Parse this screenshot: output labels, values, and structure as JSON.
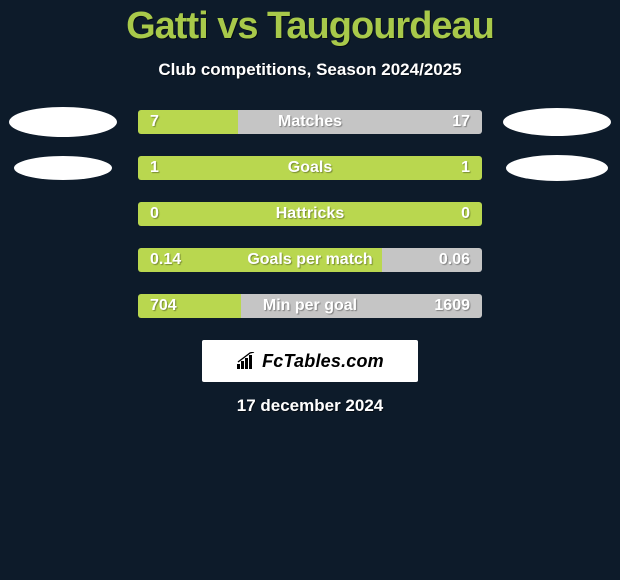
{
  "background_color": "#0d1b2a",
  "header": {
    "title": "Gatti vs Taugourdeau",
    "subtitle": "Club competitions, Season 2024/2025",
    "title_color": "#a8c94a",
    "subtitle_color": "#ffffff",
    "title_fontsize": 38,
    "subtitle_fontsize": 17
  },
  "bar_colors": {
    "left_fill": "#b9d74f",
    "right_fill": "#c5c5c5",
    "neutral_fill": "#b9d74f"
  },
  "rows": [
    {
      "label": "Matches",
      "left_value": "7",
      "right_value": "17",
      "left_pct": 29,
      "left_color": "#b9d74f",
      "right_color": "#c5c5c5",
      "show_left_badge": true,
      "show_right_badge": true,
      "left_badge_w": 108,
      "left_badge_h": 30,
      "right_badge_w": 108,
      "right_badge_h": 28
    },
    {
      "label": "Goals",
      "left_value": "1",
      "right_value": "1",
      "left_pct": 50,
      "left_color": "#b9d74f",
      "right_color": "#b9d74f",
      "show_left_badge": true,
      "show_right_badge": true,
      "left_badge_w": 98,
      "left_badge_h": 24,
      "right_badge_w": 102,
      "right_badge_h": 26
    },
    {
      "label": "Hattricks",
      "left_value": "0",
      "right_value": "0",
      "left_pct": 50,
      "left_color": "#b9d74f",
      "right_color": "#b9d74f",
      "show_left_badge": false,
      "show_right_badge": false
    },
    {
      "label": "Goals per match",
      "left_value": "0.14",
      "right_value": "0.06",
      "left_pct": 71,
      "left_color": "#b9d74f",
      "right_color": "#c5c5c5",
      "show_left_badge": false,
      "show_right_badge": false
    },
    {
      "label": "Min per goal",
      "left_value": "704",
      "right_value": "1609",
      "left_pct": 30,
      "left_color": "#b9d74f",
      "right_color": "#c5c5c5",
      "show_left_badge": false,
      "show_right_badge": false
    }
  ],
  "footer": {
    "brand": "FcTables.com",
    "date": "17 december 2024",
    "brand_bg": "#ffffff",
    "brand_color": "#000000",
    "date_color": "#ffffff"
  }
}
